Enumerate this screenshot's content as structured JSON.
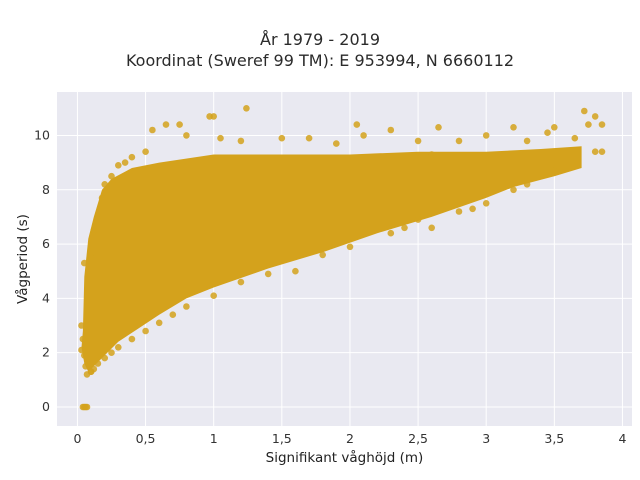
{
  "chart_data": {
    "type": "scatter",
    "title": "År 1979 - 2019",
    "subtitle": "Koordinat (Sweref 99 TM): E 953994, N 6660112",
    "xlabel": "Signifikant våghöjd (m)",
    "ylabel": "Vågperiod (s)",
    "xlim": [
      -0.15,
      4.07
    ],
    "ylim": [
      -0.7,
      11.6
    ],
    "xticks": [
      0,
      0.5,
      1,
      1.5,
      2,
      2.5,
      3,
      3.5,
      4
    ],
    "xtick_labels": [
      "0",
      "0,5",
      "1",
      "1,5",
      "2",
      "2,5",
      "3",
      "3,5",
      "4"
    ],
    "yticks": [
      0,
      2,
      4,
      6,
      8,
      10
    ],
    "ytick_labels": [
      "0",
      "2",
      "4",
      "6",
      "8",
      "10"
    ],
    "grid": true,
    "marker_color": "#d4a21c",
    "background_color": "#e9e9f1",
    "series": [
      {
        "points": [
          [
            0.04,
            0.0
          ],
          [
            0.05,
            0.0
          ],
          [
            0.06,
            0.0
          ],
          [
            0.07,
            0.0
          ],
          [
            0.05,
            5.3
          ],
          [
            0.06,
            1.5
          ],
          [
            0.07,
            1.2
          ],
          [
            0.1,
            1.3
          ],
          [
            0.12,
            1.4
          ],
          [
            0.1,
            3.5
          ],
          [
            0.1,
            5.5
          ],
          [
            0.12,
            6.5
          ],
          [
            0.15,
            7.0
          ],
          [
            0.18,
            7.7
          ],
          [
            0.2,
            8.2
          ],
          [
            0.25,
            8.5
          ],
          [
            0.3,
            8.9
          ],
          [
            0.35,
            9.0
          ],
          [
            0.4,
            9.2
          ],
          [
            0.5,
            9.4
          ],
          [
            0.55,
            10.2
          ],
          [
            0.65,
            10.4
          ],
          [
            0.75,
            10.4
          ],
          [
            0.8,
            10.0
          ],
          [
            0.97,
            10.7
          ],
          [
            1.0,
            10.7
          ],
          [
            1.05,
            9.9
          ],
          [
            1.2,
            9.8
          ],
          [
            1.24,
            11.0
          ],
          [
            1.5,
            9.9
          ],
          [
            1.7,
            9.9
          ],
          [
            1.9,
            9.7
          ],
          [
            2.05,
            10.4
          ],
          [
            2.1,
            10.0
          ],
          [
            2.3,
            10.2
          ],
          [
            2.5,
            9.8
          ],
          [
            2.6,
            9.3
          ],
          [
            2.65,
            10.3
          ],
          [
            2.8,
            9.8
          ],
          [
            3.0,
            10.0
          ],
          [
            3.2,
            10.3
          ],
          [
            3.3,
            9.8
          ],
          [
            3.45,
            10.1
          ],
          [
            3.5,
            10.3
          ],
          [
            3.65,
            9.9
          ],
          [
            3.72,
            10.9
          ],
          [
            3.75,
            10.4
          ],
          [
            3.8,
            10.7
          ],
          [
            3.85,
            10.4
          ],
          [
            3.8,
            9.4
          ],
          [
            3.85,
            9.4
          ],
          [
            3.5,
            8.7
          ],
          [
            3.3,
            8.2
          ],
          [
            3.2,
            8.0
          ],
          [
            3.0,
            7.5
          ],
          [
            2.9,
            7.3
          ],
          [
            2.8,
            7.2
          ],
          [
            2.6,
            6.6
          ],
          [
            2.5,
            6.9
          ],
          [
            2.4,
            6.6
          ],
          [
            2.3,
            6.4
          ],
          [
            2.0,
            5.9
          ],
          [
            1.8,
            5.6
          ],
          [
            1.6,
            5.0
          ],
          [
            1.4,
            4.9
          ],
          [
            1.2,
            4.6
          ],
          [
            1.0,
            4.1
          ],
          [
            0.8,
            3.7
          ],
          [
            0.7,
            3.4
          ],
          [
            0.6,
            3.1
          ],
          [
            0.5,
            2.8
          ],
          [
            0.4,
            2.5
          ],
          [
            0.3,
            2.2
          ],
          [
            0.25,
            2.0
          ],
          [
            0.2,
            1.8
          ],
          [
            0.15,
            1.6
          ],
          [
            0.1,
            1.3
          ],
          [
            0.05,
            1.9
          ],
          [
            0.03,
            2.1
          ],
          [
            0.04,
            2.5
          ],
          [
            0.03,
            3.0
          ]
        ]
      }
    ]
  }
}
